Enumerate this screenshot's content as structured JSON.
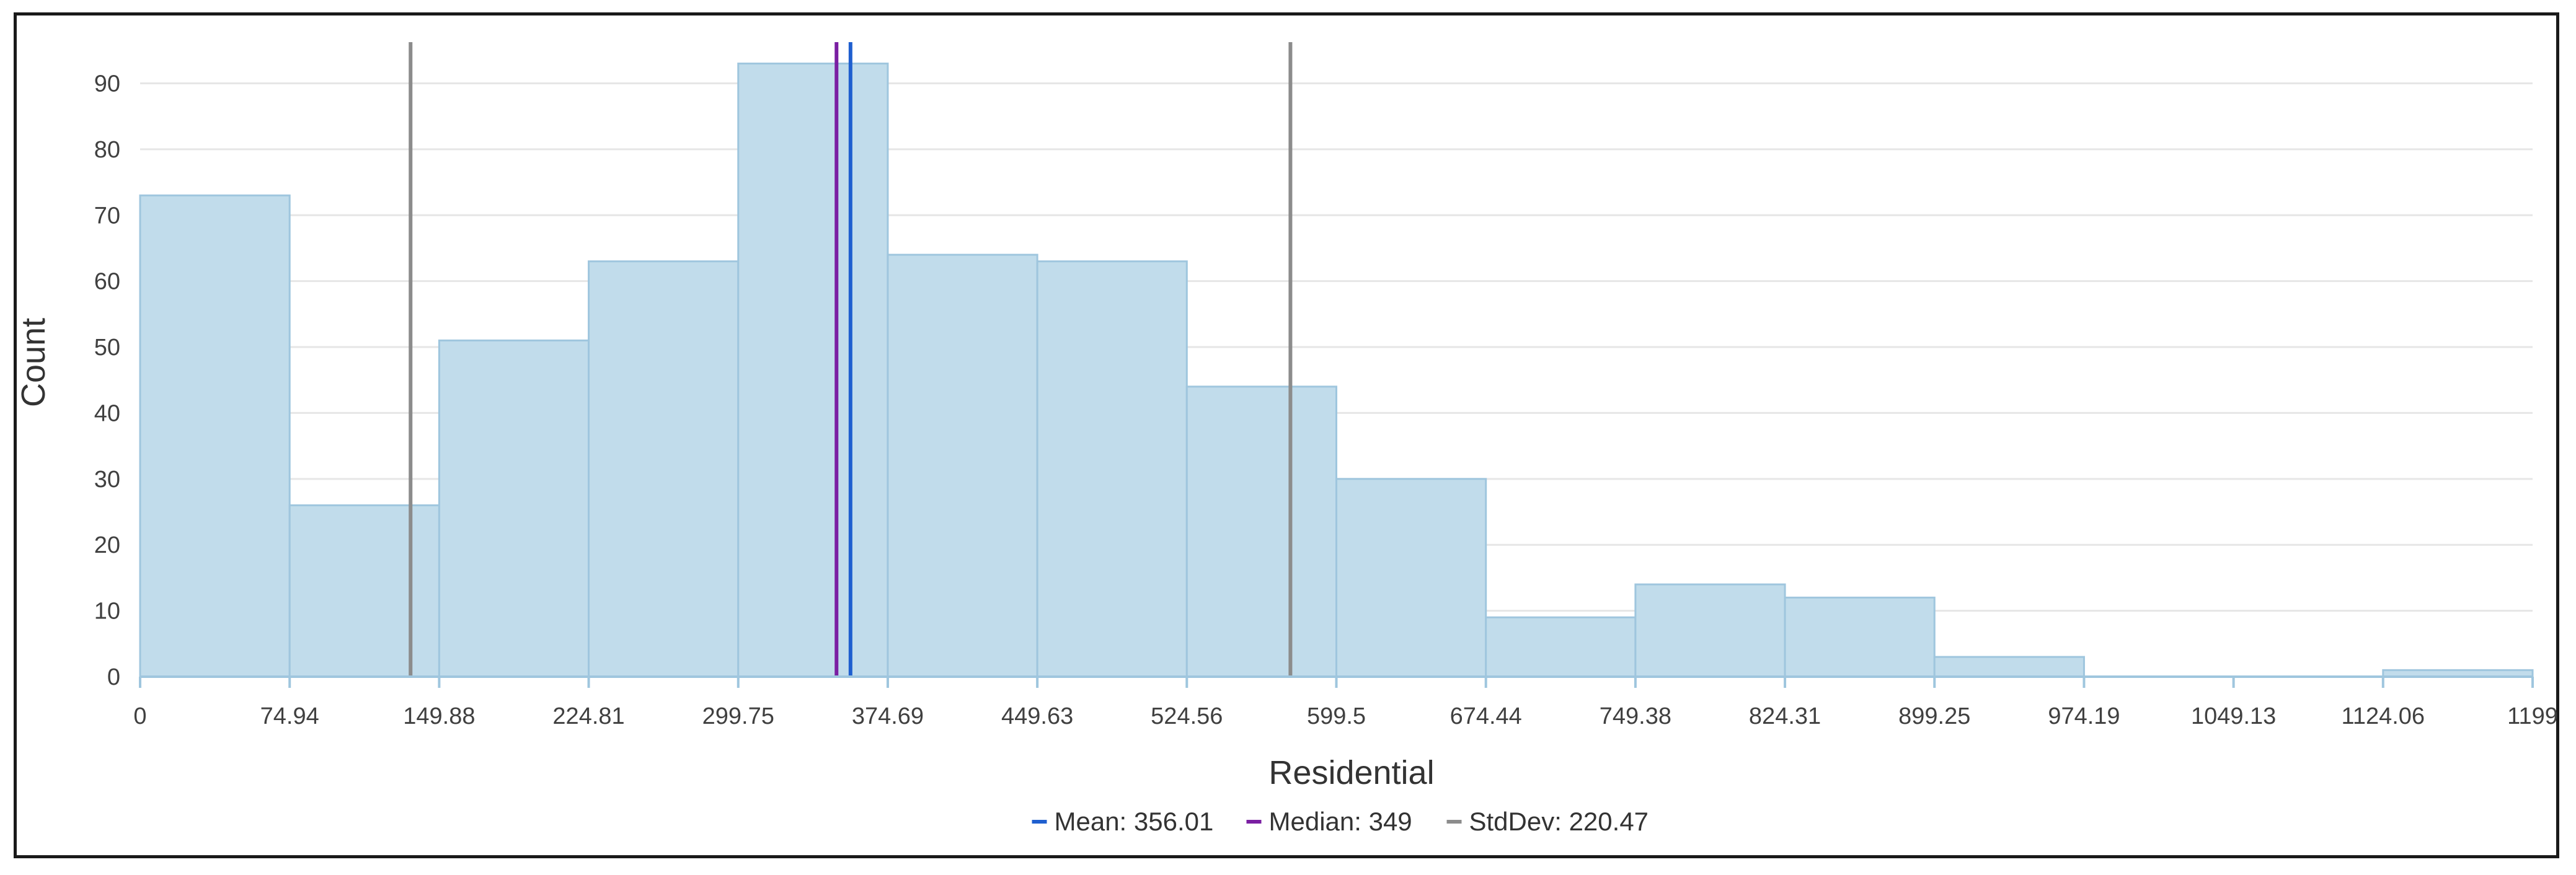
{
  "chart_data": {
    "type": "bar",
    "variant": "histogram",
    "xlabel": "Residential",
    "ylabel": "Count",
    "xlim": [
      0,
      1199
    ],
    "ylim": [
      0,
      97
    ],
    "grid": true,
    "legend_position": "bottom-center",
    "bin_edges": [
      0,
      74.94,
      149.88,
      224.81,
      299.75,
      374.69,
      449.63,
      524.56,
      599.5,
      674.44,
      749.38,
      824.31,
      899.25,
      974.19,
      1049.13,
      1124.06,
      1199
    ],
    "x_tick_labels": [
      "0",
      "74.94",
      "149.88",
      "224.81",
      "299.75",
      "374.69",
      "449.63",
      "524.56",
      "599.5",
      "674.44",
      "749.38",
      "824.31",
      "899.25",
      "974.19",
      "1049.13",
      "1124.06",
      "1199"
    ],
    "y_ticks": [
      0,
      10,
      20,
      30,
      40,
      50,
      60,
      70,
      80,
      90
    ],
    "counts": [
      73,
      26,
      51,
      63,
      93,
      64,
      63,
      44,
      30,
      9,
      14,
      12,
      3,
      0,
      0,
      1
    ],
    "reference_lines": [
      {
        "name": "StdDev",
        "x": 135.54,
        "color": "#8c8c8c"
      },
      {
        "name": "Median",
        "x": 349,
        "color": "#7a1fa2"
      },
      {
        "name": "Mean",
        "x": 356.01,
        "color": "#1f5fcf"
      },
      {
        "name": "StdDev",
        "x": 576.48,
        "color": "#8c8c8c"
      }
    ],
    "legend": [
      {
        "label": "Mean: 356.01",
        "color": "#1f5fcf"
      },
      {
        "label": "Median: 349",
        "color": "#7a1fa2"
      },
      {
        "label": "StdDev: 220.47",
        "color": "#8c8c8c"
      }
    ],
    "bar_fill": "#c1dceb",
    "bar_stroke": "#9fc6de",
    "grid_color": "#e6e6e6"
  }
}
